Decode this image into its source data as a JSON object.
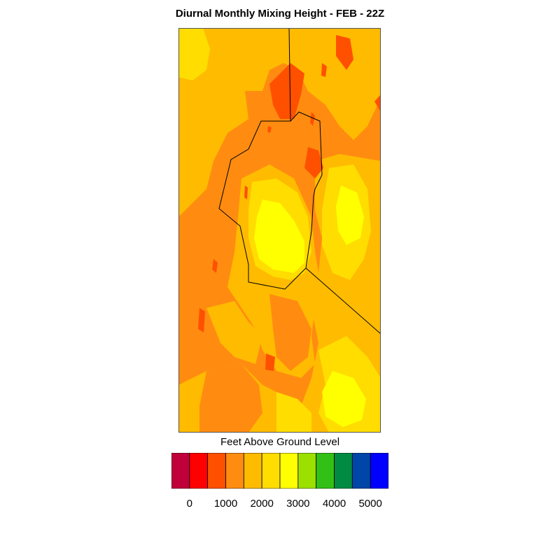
{
  "title": "Diurnal Monthly Mixing Height - FEB - 22Z",
  "legend": {
    "title": "Feet Above Ground Level",
    "colors": [
      "#c0003a",
      "#ff0000",
      "#ff5000",
      "#ff8c10",
      "#ffbb00",
      "#ffdd00",
      "#ffff00",
      "#9ce000",
      "#33c016",
      "#008a42",
      "#0046a8",
      "#0000ff"
    ],
    "ticks": [
      "0",
      "1000",
      "2000",
      "3000",
      "4000",
      "5000"
    ]
  },
  "palette": {
    "red_orange": "#ff5000",
    "orange": "#ff8c10",
    "light_orange": "#ffbb00",
    "gold": "#ffdd00",
    "yellow": "#ffff00",
    "green": "#9ce000"
  }
}
